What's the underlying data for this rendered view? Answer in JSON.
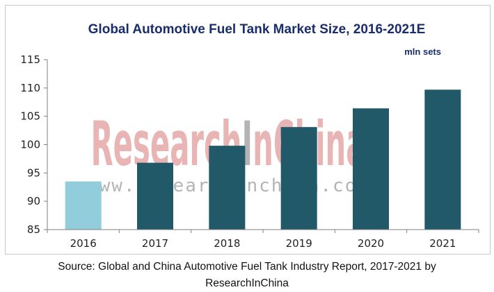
{
  "chart_data": {
    "type": "bar",
    "title": "Global Automotive Fuel Tank Market Size, 2016-2021E",
    "unit": "mln sets",
    "categories": [
      "2016",
      "2017",
      "2018",
      "2019",
      "2020",
      "2021"
    ],
    "values": [
      93.5,
      96.8,
      99.8,
      103.1,
      106.4,
      109.7
    ],
    "ylim": [
      85,
      115
    ],
    "yticks": [
      85,
      90,
      95,
      100,
      105,
      110,
      115
    ],
    "grid": false,
    "legend": "none",
    "bar_colors": [
      "#92cddc",
      "#215968",
      "#215968",
      "#215968",
      "#215968",
      "#215968"
    ],
    "xlabel": "",
    "ylabel": ""
  },
  "watermark": {
    "brand": "ResearchInChina",
    "url": "www.researchinchina.com"
  },
  "source_note": {
    "line1": "Source: Global and China Automotive Fuel Tank Industry Report, 2017-2021 by",
    "line2": "ResearchInChina"
  },
  "colors": {
    "title": "#1a2d6b",
    "axis": "#7f7f7f",
    "watermark_red": "#e9b4b4",
    "watermark_gray": "#b4b4b4"
  }
}
